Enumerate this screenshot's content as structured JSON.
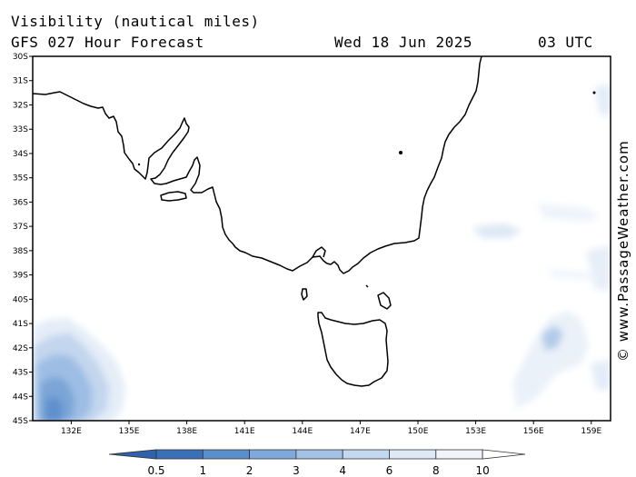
{
  "header": {
    "title": "Visibility (nautical miles)",
    "subtitle": "GFS 027 Hour Forecast",
    "date": "Wed 18 Jun 2025",
    "time": "03 UTC"
  },
  "credit": "© www.PassageWeather.com",
  "map": {
    "lat_range": [
      -45,
      -30
    ],
    "lon_range": [
      130,
      160
    ],
    "lat_labels": [
      "30S",
      "31S",
      "32S",
      "33S",
      "34S",
      "35S",
      "36S",
      "37S",
      "38S",
      "39S",
      "40S",
      "41S",
      "42S",
      "43S",
      "44S",
      "45S"
    ],
    "lon_labels": [
      {
        "lon": 132,
        "label": "132E"
      },
      {
        "lon": 135,
        "label": "135E"
      },
      {
        "lon": 138,
        "label": "138E"
      },
      {
        "lon": 141,
        "label": "141E"
      },
      {
        "lon": 144,
        "label": "144E"
      },
      {
        "lon": 147,
        "label": "147E"
      },
      {
        "lon": 150,
        "label": "150E"
      },
      {
        "lon": 153,
        "label": "153E"
      },
      {
        "lon": 156,
        "label": "156E"
      },
      {
        "lon": 159,
        "label": "159E"
      }
    ],
    "land_color": "#ffffff",
    "coast_color": "#000000"
  },
  "legend": {
    "labels": [
      "0.5",
      "1",
      "2",
      "3",
      "4",
      "6",
      "8",
      "10"
    ],
    "colors": [
      "#3a70b8",
      "#5b8fcc",
      "#7ea9da",
      "#a3c2e6",
      "#c4d8ef",
      "#dfe9f6",
      "#f1f5fb",
      "#ffffff"
    ]
  }
}
